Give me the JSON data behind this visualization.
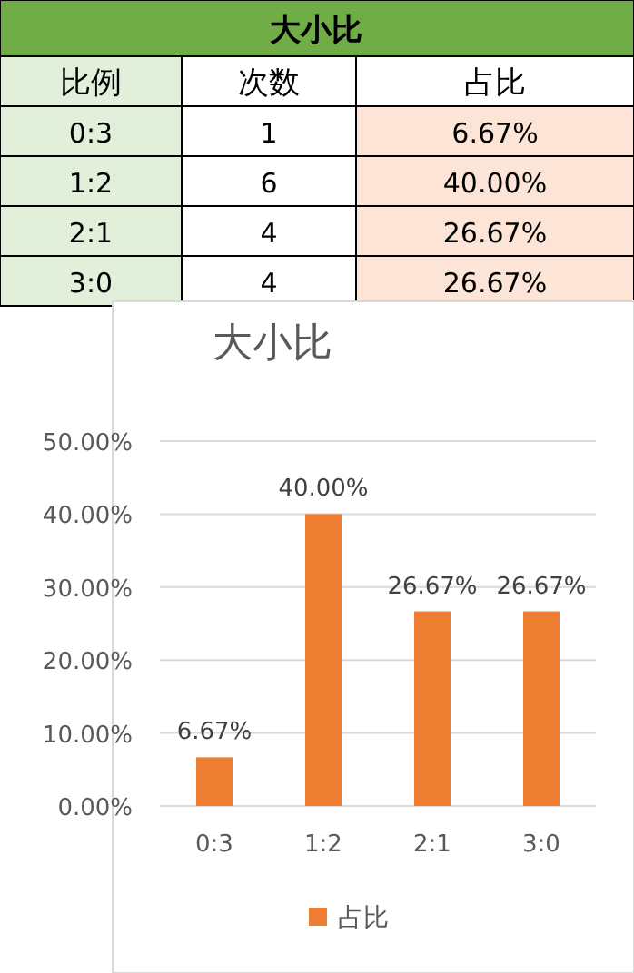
{
  "chart_data": [
    {
      "type": "other",
      "title": "大小比",
      "annotations": [
        "比例",
        "次数",
        "占比",
        "0:3",
        "1",
        "6.67%",
        "1:2",
        "6",
        "40.00%",
        "2:1",
        "4",
        "26.67%",
        "3:0",
        "4",
        "26.67%"
      ]
    },
    {
      "type": "bar",
      "title": "大小比",
      "categories": [
        "0:3",
        "1:2",
        "2:1",
        "3:0"
      ],
      "series": [
        {
          "name": "占比",
          "color": "#ed7d31",
          "values": [
            6.67,
            40,
            26.67,
            26.67
          ],
          "value_labels": [
            "6.67%",
            "40.00%",
            "26.67%",
            "26.67%"
          ]
        }
      ],
      "ylim": [
        0,
        50
      ],
      "yticks": [
        {
          "value": 0,
          "label": "0.00%"
        },
        {
          "value": 10,
          "label": "10.00%"
        },
        {
          "value": 20,
          "label": "20.00%"
        },
        {
          "value": 30,
          "label": "30.00%"
        },
        {
          "value": 40,
          "label": "40.00%"
        },
        {
          "value": 50,
          "label": "50.00%"
        }
      ],
      "grid": "y",
      "legend": "bottom"
    }
  ]
}
